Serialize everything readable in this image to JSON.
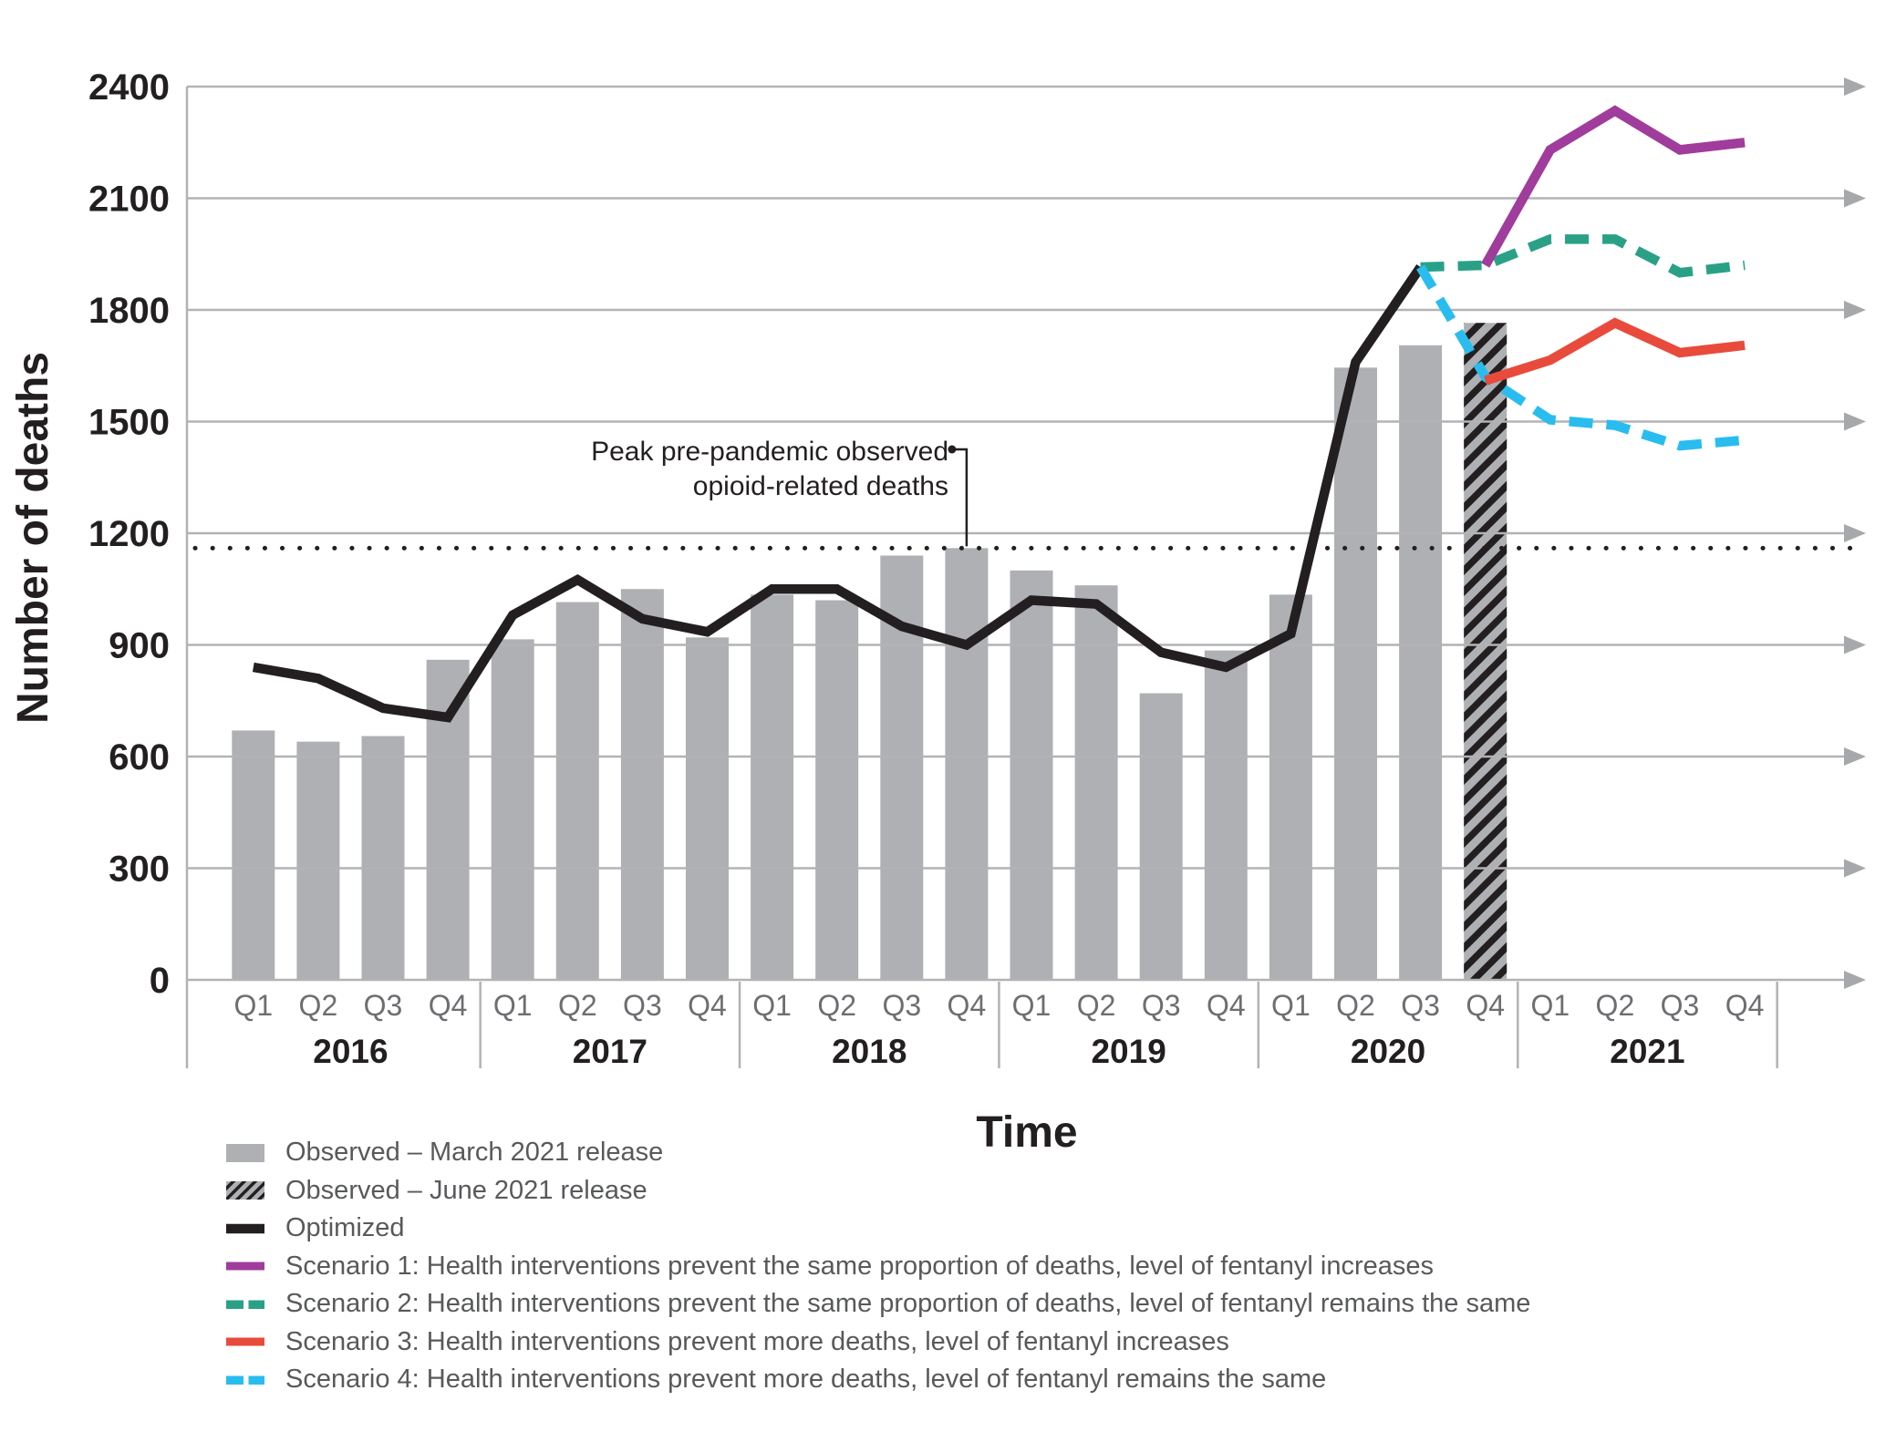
{
  "annotation": {
    "line1": "Peak pre-pandemic observed",
    "line2": "opioid-related deaths",
    "points_to": "2018 Q4 bar"
  },
  "colors": {
    "background": "#ffffff",
    "grid": "#b3b3b5",
    "arrow": "#a6a8ab",
    "axis_text": "#231f20",
    "quarter_label": "#6d6e71",
    "year_label": "#231f20",
    "legend_text": "#58595b",
    "annotation_text": "#231f20",
    "dotted_reference": "#231f20"
  },
  "chart_data": {
    "type": "bar+line",
    "xlabel": "Time",
    "ylabel": "Number of deaths",
    "ylim": [
      0,
      2400
    ],
    "yticks": [
      0,
      300,
      600,
      900,
      1200,
      1500,
      1800,
      2100,
      2400
    ],
    "years": [
      "2016",
      "2017",
      "2018",
      "2019",
      "2020",
      "2021"
    ],
    "quarters": [
      "Q1",
      "Q2",
      "Q3",
      "Q4"
    ],
    "grid": "on",
    "legend_position": "bottom-left",
    "reference_line": {
      "value": 1160,
      "style": "dotted",
      "label": "Peak pre-pandemic observed opioid-related deaths",
      "at_category": "2018 Q4"
    },
    "series": [
      {
        "name": "Observed – March 2021 release",
        "type": "bar",
        "color": "#aeb0b3",
        "values": [
          670,
          640,
          655,
          860,
          915,
          1015,
          1050,
          920,
          1035,
          1020,
          1140,
          1160,
          1100,
          1060,
          770,
          885,
          1035,
          1645,
          1705,
          null,
          null,
          null,
          null,
          null
        ]
      },
      {
        "name": "Observed – June 2021 release",
        "type": "bar",
        "style": "hatched",
        "color": "#aeb0b3",
        "hatch_color": "#231f20",
        "values": [
          null,
          null,
          null,
          null,
          null,
          null,
          null,
          null,
          null,
          null,
          null,
          null,
          null,
          null,
          null,
          null,
          null,
          null,
          null,
          1765,
          null,
          null,
          null,
          null
        ]
      },
      {
        "name": "Optimized",
        "type": "line",
        "color": "#231f20",
        "dash": false,
        "values": [
          840,
          810,
          730,
          705,
          980,
          1075,
          970,
          935,
          1050,
          1050,
          950,
          900,
          1020,
          1010,
          880,
          840,
          930,
          1660,
          1915,
          null,
          null,
          null,
          null,
          null
        ]
      },
      {
        "name": "Scenario 1: Health interventions prevent the same proportion of deaths, level of fentanyl increases",
        "type": "line",
        "color": "#a03c9c",
        "dash": false,
        "values": [
          null,
          null,
          null,
          null,
          null,
          null,
          null,
          null,
          null,
          null,
          null,
          null,
          null,
          null,
          null,
          null,
          null,
          null,
          null,
          1920,
          2230,
          2335,
          2230,
          2250
        ]
      },
      {
        "name": "Scenario 2: Health interventions prevent the same proportion of deaths, level of fentanyl remains the same",
        "type": "line",
        "color": "#2aa187",
        "dash": true,
        "values": [
          null,
          null,
          null,
          null,
          null,
          null,
          null,
          null,
          null,
          null,
          null,
          null,
          null,
          null,
          null,
          null,
          null,
          null,
          1915,
          1920,
          1990,
          1990,
          1900,
          1920
        ]
      },
      {
        "name": "Scenario 3: Health interventions prevent more deaths, level of fentanyl increases",
        "type": "line",
        "color": "#e84b3c",
        "dash": false,
        "values": [
          null,
          null,
          null,
          null,
          null,
          null,
          null,
          null,
          null,
          null,
          null,
          null,
          null,
          null,
          null,
          null,
          null,
          null,
          null,
          1610,
          1665,
          1765,
          1685,
          1705
        ]
      },
      {
        "name": "Scenario 4: Health interventions prevent more deaths, level of fentanyl remains the same",
        "type": "line",
        "color": "#29bdef",
        "dash": true,
        "values": [
          null,
          null,
          null,
          null,
          null,
          null,
          null,
          null,
          null,
          null,
          null,
          null,
          null,
          null,
          null,
          null,
          null,
          null,
          1915,
          1620,
          1505,
          1490,
          1435,
          1450
        ]
      }
    ]
  }
}
